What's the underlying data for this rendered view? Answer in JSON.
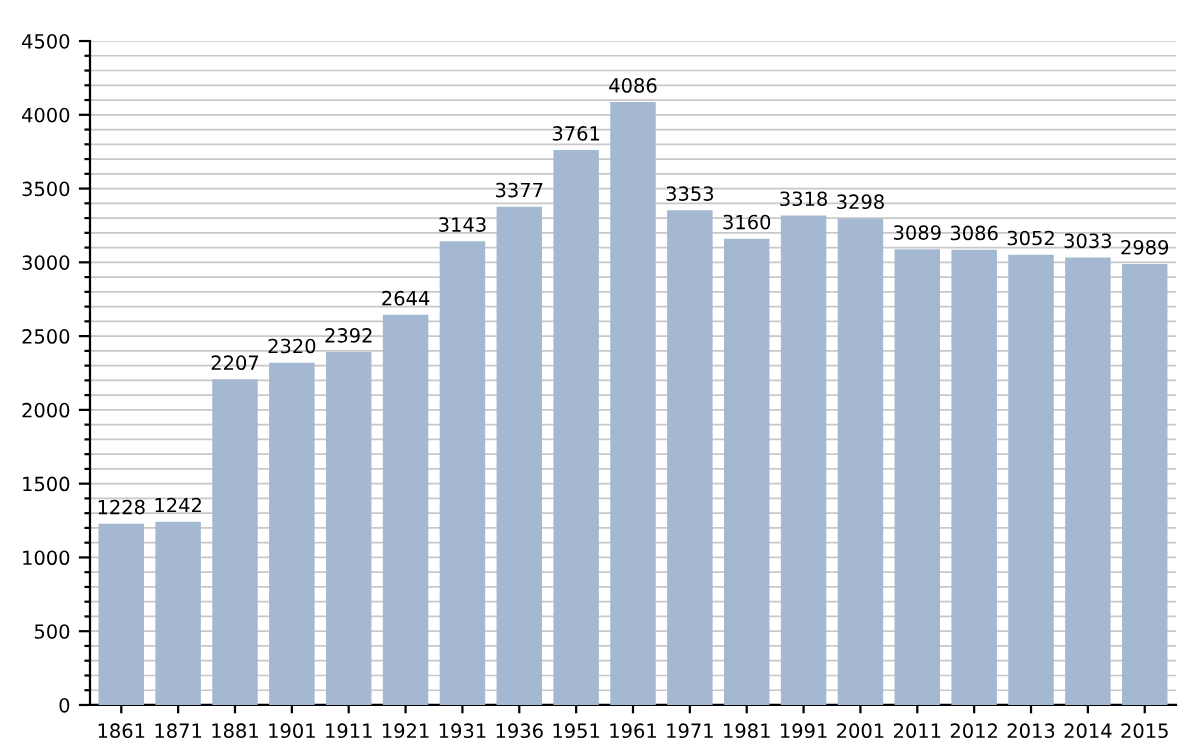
{
  "chart_data": {
    "type": "bar",
    "categories": [
      "1861",
      "1871",
      "1881",
      "1901",
      "1911",
      "1921",
      "1931",
      "1936",
      "1951",
      "1961",
      "1971",
      "1981",
      "1991",
      "2001",
      "2011",
      "2012",
      "2013",
      "2014",
      "2015"
    ],
    "values": [
      1228,
      1242,
      2207,
      2320,
      2392,
      2644,
      3143,
      3377,
      3761,
      4086,
      3353,
      3160,
      3318,
      3298,
      3089,
      3086,
      3052,
      3033,
      2989
    ],
    "color": "#a4b8d1",
    "data_labels": true,
    "grid": "y",
    "ylim": [
      0,
      4500
    ],
    "yticks": [
      0,
      {
        "value": 100,
        "label": null
      },
      {
        "value": 200,
        "label": null
      },
      {
        "value": 300,
        "label": null
      },
      {
        "value": 400,
        "label": null
      },
      500,
      {
        "value": 600,
        "label": null
      },
      {
        "value": 700,
        "label": null
      },
      {
        "value": 800,
        "label": null
      },
      {
        "value": 900,
        "label": null
      },
      1000,
      {
        "value": 1100,
        "label": null
      },
      {
        "value": 1200,
        "label": null
      },
      {
        "value": 1300,
        "label": null
      },
      {
        "value": 1400,
        "label": null
      },
      1500,
      {
        "value": 1600,
        "label": null
      },
      {
        "value": 1700,
        "label": null
      },
      {
        "value": 1800,
        "label": null
      },
      {
        "value": 1900,
        "label": null
      },
      2000,
      {
        "value": 2100,
        "label": null
      },
      {
        "value": 2200,
        "label": null
      },
      {
        "value": 2300,
        "label": null
      },
      {
        "value": 2400,
        "label": null
      },
      2500,
      {
        "value": 2600,
        "label": null
      },
      {
        "value": 2700,
        "label": null
      },
      {
        "value": 2800,
        "label": null
      },
      {
        "value": 2900,
        "label": null
      },
      3000,
      {
        "value": 3100,
        "label": null
      },
      {
        "value": 3200,
        "label": null
      },
      {
        "value": 3300,
        "label": null
      },
      {
        "value": 3400,
        "label": null
      },
      3500,
      {
        "value": 3600,
        "label": null
      },
      {
        "value": 3700,
        "label": null
      },
      {
        "value": 3800,
        "label": null
      },
      {
        "value": 3900,
        "label": null
      },
      4000,
      {
        "value": 4100,
        "label": null
      },
      {
        "value": 4200,
        "label": null
      },
      {
        "value": 4300,
        "label": null
      },
      {
        "value": 4400,
        "label": null
      },
      4500
    ]
  }
}
